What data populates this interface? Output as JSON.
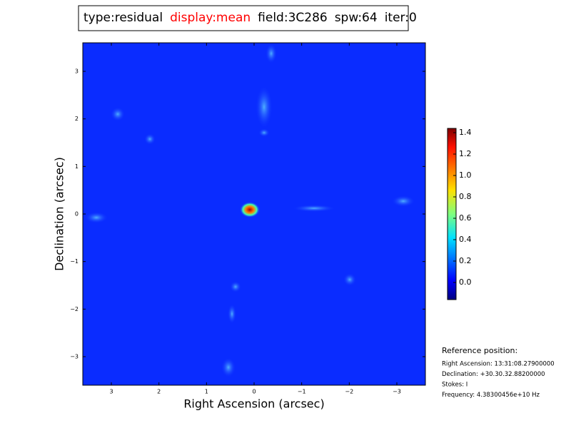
{
  "header": {
    "items": [
      {
        "text": "type:residual",
        "color": "#000000"
      },
      {
        "text": "display:mean",
        "color": "#ff0000"
      },
      {
        "text": "field:3C286",
        "color": "#000000"
      },
      {
        "text": "spw:64",
        "color": "#000000"
      },
      {
        "text": "iter:0",
        "color": "#000000"
      }
    ]
  },
  "chart_data": {
    "type": "image",
    "x_label": "Right Ascension (arcsec)",
    "y_label": "Declination (arcsec)",
    "xlim": [
      3.6,
      -3.6
    ],
    "xticks": [
      3,
      2,
      1,
      0,
      {
        "value": -1,
        "label": "−1"
      },
      {
        "value": -2,
        "label": "−2"
      },
      {
        "value": -3,
        "label": "−3"
      }
    ],
    "ylim": [
      -3.6,
      3.6
    ],
    "yticks": [
      {
        "value": -3,
        "label": "−3"
      },
      {
        "value": -2,
        "label": "−2"
      },
      {
        "value": -1,
        "label": "−1"
      },
      0,
      1,
      2,
      3
    ],
    "colorbar": {
      "lim": [
        -0.16,
        1.44
      ],
      "ticks": [
        {
          "value": 0,
          "label": "0.0"
        },
        0.2,
        0.4,
        0.6,
        0.8,
        {
          "value": 1,
          "label": "1.0"
        },
        1.2,
        1.4
      ]
    }
  },
  "reference": {
    "title": "Reference position:",
    "lines": [
      "Right Ascension: 13:31:08.27900000",
      "Declination: +30.30.32.88200000",
      "Stokes: I",
      "Frequency: 4.38300456e+10 Hz"
    ]
  }
}
